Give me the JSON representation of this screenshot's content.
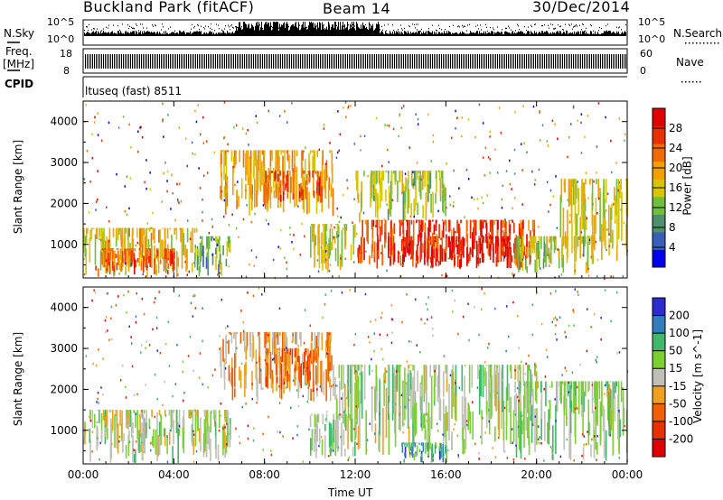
{
  "header": {
    "station": "Buckland Park (fitACF)",
    "beam": "Beam 14",
    "date": "30/Dec/2014"
  },
  "sky_panel": {
    "left_label": "N.Sky",
    "right_label": "N.Search",
    "left_ticks": [
      "10^5",
      "10^0"
    ],
    "right_ticks": [
      "10^5",
      "10^0"
    ]
  },
  "freq_panel": {
    "left_label": "Freq.",
    "left_unit": "[MHz]",
    "cpid_label": "CPID",
    "left_ticks": [
      "18",
      "8"
    ],
    "right_ticks": [
      "60",
      "0"
    ],
    "right_label": "Nave"
  },
  "cpid_panel": {
    "text": "ltuseq (fast) 8511"
  },
  "colors": {
    "power_scale": [
      "#0000ee",
      "#3a5fb8",
      "#4f8f6e",
      "#6fbf3a",
      "#d8c400",
      "#f2a000",
      "#f06a00",
      "#e83000",
      "#e00000"
    ],
    "velocity_scale": [
      "#2c2ccf",
      "#2f7fbf",
      "#3fb86a",
      "#7ccf30",
      "#c0c0b8",
      "#f0a020",
      "#f06000",
      "#e83000",
      "#e00000"
    ]
  },
  "chart_data": [
    {
      "type": "heatmap",
      "name": "power",
      "ylabel": "Slant Range [km]",
      "ylim": [
        180,
        4500
      ],
      "yticks": [
        1000,
        2000,
        3000,
        4000
      ],
      "ytick_labels": [
        "1000",
        "2000",
        "3000",
        "4000"
      ],
      "xlim": [
        0,
        24
      ],
      "colorbar": {
        "label": "Power [dB]",
        "ticks": [
          "4",
          "8",
          "12",
          "16",
          "20",
          "24",
          "28"
        ]
      },
      "regions": [
        {
          "x0": 0,
          "x1": 5,
          "y0": 200,
          "y1": 1400,
          "level": 0.55
        },
        {
          "x0": 0.5,
          "x1": 4,
          "y0": 250,
          "y1": 900,
          "level": 0.75
        },
        {
          "x0": 5,
          "x1": 6.5,
          "y0": 200,
          "y1": 1200,
          "level": 0.35
        },
        {
          "x0": 6,
          "x1": 11,
          "y0": 1700,
          "y1": 3300,
          "level": 0.6
        },
        {
          "x0": 8,
          "x1": 10.5,
          "y0": 2000,
          "y1": 2800,
          "level": 0.78
        },
        {
          "x0": 10,
          "x1": 12,
          "y0": 300,
          "y1": 1500,
          "level": 0.5
        },
        {
          "x0": 12,
          "x1": 20,
          "y0": 400,
          "y1": 1600,
          "level": 0.8
        },
        {
          "x0": 14,
          "x1": 19,
          "y0": 400,
          "y1": 1200,
          "level": 0.92
        },
        {
          "x0": 12,
          "x1": 16,
          "y0": 1500,
          "y1": 2800,
          "level": 0.45
        },
        {
          "x0": 19,
          "x1": 22.5,
          "y0": 250,
          "y1": 1200,
          "level": 0.45
        },
        {
          "x0": 21,
          "x1": 24,
          "y0": 600,
          "y1": 2600,
          "level": 0.5
        }
      ]
    },
    {
      "type": "heatmap",
      "name": "velocity",
      "ylabel": "Slant Range [km]",
      "xlabel": "Time UT",
      "ylim": [
        180,
        4500
      ],
      "yticks": [
        1000,
        2000,
        3000,
        4000
      ],
      "ytick_labels": [
        "1000",
        "2000",
        "3000",
        "4000"
      ],
      "xlim": [
        0,
        24
      ],
      "xticks": [
        0,
        4,
        8,
        12,
        16,
        20,
        24
      ],
      "xtick_labels": [
        "00:00",
        "04:00",
        "08:00",
        "12:00",
        "16:00",
        "20:00",
        "00:00"
      ],
      "colorbar": {
        "label": "Velocity [m s^-1]",
        "ticks": [
          "200",
          "100",
          "50",
          "15",
          "-15",
          "-50",
          "-100",
          "-200"
        ]
      },
      "regions": [
        {
          "x0": 0,
          "x1": 6.5,
          "y0": 200,
          "y1": 1500,
          "level": 0.45
        },
        {
          "x0": 6,
          "x1": 11,
          "y0": 1700,
          "y1": 3400,
          "level": 0.62
        },
        {
          "x0": 8,
          "x1": 10.5,
          "y0": 2000,
          "y1": 3000,
          "level": 0.72
        },
        {
          "x0": 10,
          "x1": 12,
          "y0": 300,
          "y1": 1400,
          "level": 0.4
        },
        {
          "x0": 11,
          "x1": 20,
          "y0": 400,
          "y1": 2600,
          "level": 0.44
        },
        {
          "x0": 19,
          "x1": 24,
          "y0": 250,
          "y1": 2200,
          "level": 0.42
        },
        {
          "x0": 14,
          "x1": 16,
          "y0": 200,
          "y1": 700,
          "level": 0.25
        }
      ]
    }
  ]
}
